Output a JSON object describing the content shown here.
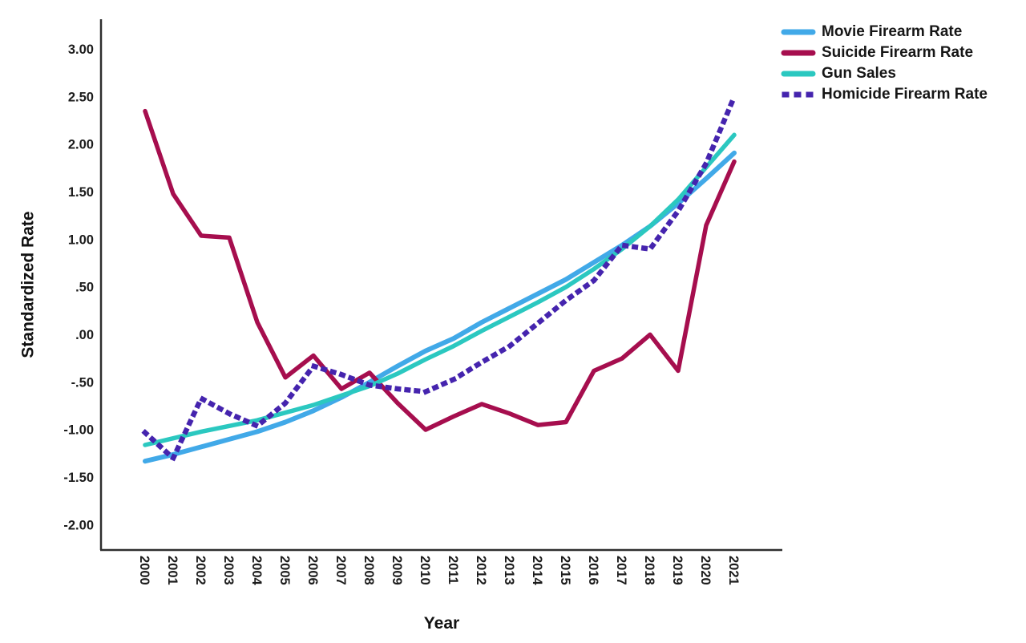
{
  "page": {
    "background": "#ffffff",
    "axis_color": "#2e2e2e",
    "text_color": "#1c1c1c"
  },
  "chart_data": {
    "type": "line",
    "title": "",
    "xlabel": "Year",
    "ylabel": "Standardized Rate",
    "grid": false,
    "legend_position": "top-right",
    "x": [
      2000,
      2001,
      2002,
      2003,
      2004,
      2005,
      2006,
      2007,
      2008,
      2009,
      2010,
      2011,
      2012,
      2013,
      2014,
      2015,
      2016,
      2017,
      2018,
      2019,
      2020,
      2021
    ],
    "x_tick_labels": [
      "2000",
      "2001",
      "2002",
      "2003",
      "2004",
      "2005",
      "2006",
      "2007",
      "2008",
      "2009",
      "2010",
      "2011",
      "2012",
      "2013",
      "2014",
      "2015",
      "2016",
      "2017",
      "2018",
      "2019",
      "2020",
      "2021"
    ],
    "y_ticks": [
      3.0,
      2.5,
      2.0,
      1.5,
      1.0,
      0.5,
      0.0,
      -0.5,
      -1.0,
      -1.5,
      -2.0
    ],
    "y_tick_labels": [
      "3.00",
      "2.50",
      "2.00",
      "1.50",
      "1.00",
      ".50",
      ".00",
      "-.50",
      "-1.00",
      "-1.50",
      "-2.00"
    ],
    "ylim": [
      -2.26,
      3.32
    ],
    "series": [
      {
        "name": "Movie Firearm Rate",
        "color": "#41A9E8",
        "style": "solid",
        "width": 6,
        "values": [
          -1.33,
          -1.26,
          -1.18,
          -1.1,
          -1.02,
          -0.92,
          -0.8,
          -0.66,
          -0.5,
          -0.33,
          -0.17,
          -0.04,
          0.13,
          0.28,
          0.43,
          0.58,
          0.76,
          0.94,
          1.14,
          1.38,
          1.64,
          1.91
        ]
      },
      {
        "name": "Suicide Firearm Rate",
        "color": "#A60E4E",
        "style": "solid",
        "width": 5.5,
        "values": [
          2.35,
          1.48,
          1.04,
          1.02,
          0.13,
          -0.45,
          -0.22,
          -0.57,
          -0.4,
          -0.72,
          -1.0,
          -0.86,
          -0.73,
          -0.83,
          -0.95,
          -0.92,
          -0.38,
          -0.25,
          0.0,
          -0.38,
          1.15,
          1.82
        ]
      },
      {
        "name": "Gun Sales",
        "color": "#2BC8C0",
        "style": "solid",
        "width": 5.5,
        "values": [
          -1.16,
          -1.09,
          -1.02,
          -0.96,
          -0.9,
          -0.82,
          -0.74,
          -0.64,
          -0.54,
          -0.41,
          -0.26,
          -0.12,
          0.04,
          0.19,
          0.34,
          0.5,
          0.69,
          0.9,
          1.14,
          1.42,
          1.76,
          2.1
        ]
      },
      {
        "name": "Homicide Firearm Rate",
        "color": "#4524AE",
        "style": "dotted",
        "width": 6.5,
        "values": [
          -1.03,
          -1.3,
          -0.67,
          -0.83,
          -0.96,
          -0.72,
          -0.33,
          -0.42,
          -0.53,
          -0.57,
          -0.6,
          -0.47,
          -0.29,
          -0.12,
          0.12,
          0.36,
          0.57,
          0.94,
          0.9,
          1.3,
          1.8,
          2.5
        ]
      }
    ]
  }
}
